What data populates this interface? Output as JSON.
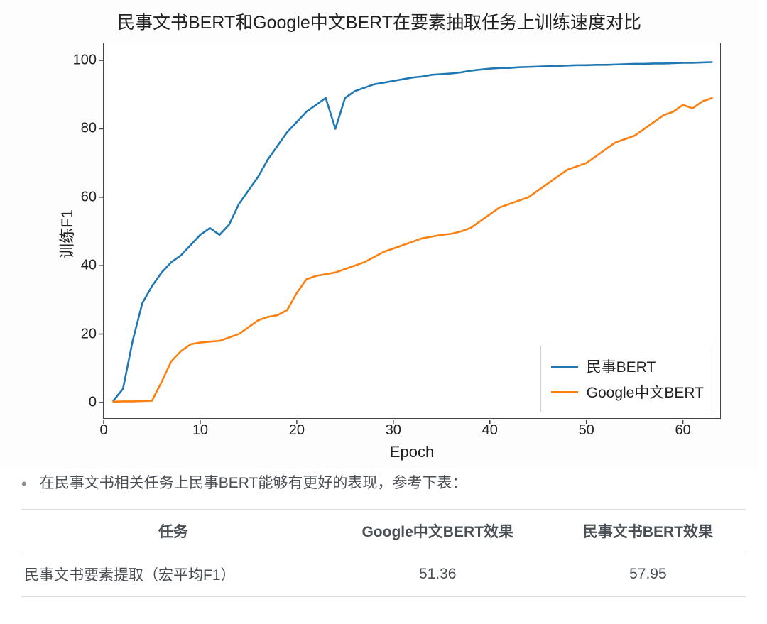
{
  "chart": {
    "type": "line",
    "title": "民事文书BERT和Google中文BERT在要素抽取任务上训练速度对比",
    "title_fontsize": 25,
    "xlabel": "Epoch",
    "ylabel": "训练F1",
    "label_fontsize": 22,
    "xlim": [
      0,
      64
    ],
    "ylim": [
      -5,
      105
    ],
    "xticks": [
      0,
      10,
      20,
      30,
      40,
      50,
      60
    ],
    "yticks": [
      0,
      20,
      40,
      60,
      80,
      100
    ],
    "tick_fontsize": 20,
    "background_color": "#ffffff",
    "border_color": "#444444",
    "line_width": 2.6,
    "legend": {
      "position": "lower right",
      "border_color": "#cfcfcf",
      "bg_color": "#ffffff",
      "fontsize": 21,
      "items": [
        {
          "label": "民事BERT",
          "color": "#1f77b4"
        },
        {
          "label": "Google中文BERT",
          "color": "#ff7f0e"
        }
      ]
    },
    "series": [
      {
        "name": "民事BERT",
        "color": "#1f77b4",
        "x": [
          1,
          2,
          3,
          4,
          5,
          6,
          7,
          8,
          9,
          10,
          11,
          12,
          13,
          14,
          15,
          16,
          17,
          18,
          19,
          20,
          21,
          22,
          23,
          24,
          25,
          26,
          27,
          28,
          29,
          30,
          31,
          32,
          33,
          34,
          35,
          36,
          37,
          38,
          39,
          40,
          41,
          42,
          43,
          44,
          45,
          46,
          47,
          48,
          49,
          50,
          51,
          52,
          53,
          54,
          55,
          56,
          57,
          58,
          59,
          60,
          61,
          62,
          63
        ],
        "y": [
          0.5,
          4,
          18,
          29,
          34,
          38,
          41,
          43,
          46,
          49,
          51,
          49,
          52,
          58,
          62,
          66,
          71,
          75,
          79,
          82,
          85,
          87,
          89,
          80,
          89,
          91,
          92,
          93,
          93.5,
          94,
          94.5,
          95,
          95.3,
          95.8,
          96,
          96.2,
          96.5,
          97,
          97.3,
          97.6,
          97.8,
          97.8,
          98,
          98.1,
          98.2,
          98.3,
          98.4,
          98.5,
          98.6,
          98.6,
          98.7,
          98.7,
          98.8,
          98.9,
          99,
          99,
          99.1,
          99.1,
          99.2,
          99.3,
          99.3,
          99.4,
          99.5
        ]
      },
      {
        "name": "Google中文BERT",
        "color": "#ff7f0e",
        "x": [
          1,
          2,
          3,
          4,
          5,
          6,
          7,
          8,
          9,
          10,
          11,
          12,
          13,
          14,
          15,
          16,
          17,
          18,
          19,
          20,
          21,
          22,
          23,
          24,
          25,
          26,
          27,
          28,
          29,
          30,
          31,
          32,
          33,
          34,
          35,
          36,
          37,
          38,
          39,
          40,
          41,
          42,
          43,
          44,
          45,
          46,
          47,
          48,
          49,
          50,
          51,
          52,
          53,
          54,
          55,
          56,
          57,
          58,
          59,
          60,
          61,
          62,
          63
        ],
        "y": [
          0.2,
          0.3,
          0.3,
          0.4,
          0.5,
          6,
          12,
          15,
          17,
          17.5,
          17.8,
          18,
          19,
          20,
          22,
          24,
          25,
          25.5,
          27,
          32,
          36,
          37,
          37.5,
          38,
          39,
          40,
          41,
          42.5,
          44,
          45,
          46,
          47,
          48,
          48.5,
          49,
          49.3,
          50,
          51,
          53,
          55,
          57,
          58,
          59,
          60,
          62,
          64,
          66,
          68,
          69,
          70,
          72,
          74,
          76,
          77,
          78,
          80,
          82,
          84,
          85,
          87,
          86,
          88,
          89
        ]
      }
    ]
  },
  "bullet": {
    "text": "在民事文书相关任务上民事BERT能够有更好的表现，参考下表："
  },
  "table": {
    "columns": [
      "任务",
      "Google中文BERT效果",
      "民事文书BERT效果"
    ],
    "column_align": [
      "left",
      "center",
      "center"
    ],
    "header_fontweight": 700,
    "border_color": "#d9dde1",
    "rows": [
      [
        "民事文书要素提取（宏平均F1）",
        "51.36",
        "57.95"
      ]
    ]
  }
}
